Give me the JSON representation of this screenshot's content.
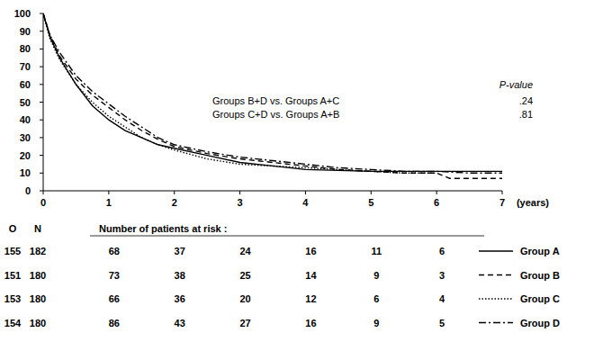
{
  "chart_data": {
    "type": "line",
    "x_label": "(years)",
    "xlim": [
      0,
      7
    ],
    "xticks": [
      0,
      1,
      2,
      3,
      4,
      5,
      6,
      7
    ],
    "ylim": [
      0,
      100
    ],
    "yticks": [
      0,
      10,
      20,
      30,
      40,
      50,
      60,
      70,
      80,
      90,
      100
    ],
    "grid": false,
    "p_value_title": "P-value",
    "p_values": [
      {
        "comparison": "Groups B+D vs. Groups A+C",
        "value": 0.24,
        "label": ".24"
      },
      {
        "comparison": "Groups C+D vs. Groups A+B",
        "value": 0.81,
        "label": ".81"
      }
    ],
    "risk_table": {
      "title": "Number of patients at risk :",
      "headers": [
        "O",
        "N"
      ],
      "times": [
        1,
        2,
        3,
        4,
        5,
        6
      ]
    },
    "series": [
      {
        "name": "Group A",
        "color": "#000000",
        "line_style": "solid",
        "observed": 155,
        "n": 182,
        "at_risk": [
          68,
          37,
          24,
          16,
          11,
          6
        ],
        "x": [
          0,
          0.1,
          0.25,
          0.5,
          0.75,
          1,
          1.25,
          1.5,
          1.75,
          2,
          2.5,
          3,
          3.5,
          4,
          4.5,
          5,
          6,
          7
        ],
        "values": [
          100,
          87,
          75,
          60,
          48,
          40,
          34,
          30,
          26,
          24,
          20,
          16,
          14,
          12,
          11.5,
          11,
          11,
          11
        ]
      },
      {
        "name": "Group B",
        "color": "#000000",
        "line_style": "dashed",
        "observed": 151,
        "n": 180,
        "at_risk": [
          73,
          38,
          25,
          14,
          9,
          3
        ],
        "x": [
          0,
          0.1,
          0.25,
          0.5,
          0.75,
          1,
          1.25,
          1.5,
          1.75,
          2,
          2.5,
          3,
          3.5,
          4,
          4.5,
          5,
          5.5,
          6,
          6.2,
          7
        ],
        "values": [
          100,
          88,
          76,
          63,
          54,
          47,
          40,
          34,
          29,
          25,
          21,
          18,
          16,
          14,
          12,
          11,
          10,
          10,
          7,
          7
        ]
      },
      {
        "name": "Group C",
        "color": "#000000",
        "line_style": "dotted",
        "observed": 153,
        "n": 180,
        "at_risk": [
          66,
          36,
          20,
          12,
          6,
          4
        ],
        "x": [
          0,
          0.1,
          0.25,
          0.5,
          0.75,
          1,
          1.25,
          1.5,
          1.75,
          2,
          2.5,
          3,
          3.5,
          4,
          4.5,
          5,
          5.5,
          6
        ],
        "values": [
          100,
          86,
          74,
          60,
          50,
          42,
          36,
          30,
          26,
          23,
          18,
          15,
          14,
          13,
          12,
          11,
          10,
          10
        ]
      },
      {
        "name": "Group D",
        "color": "#000000",
        "line_style": "dashdot",
        "observed": 154,
        "n": 180,
        "at_risk": [
          86,
          43,
          27,
          16,
          9,
          5
        ],
        "x": [
          0,
          0.1,
          0.25,
          0.5,
          0.75,
          1,
          1.25,
          1.5,
          1.75,
          2,
          2.5,
          3,
          3.5,
          4,
          4.5,
          5,
          5.5,
          6,
          6.5,
          7
        ],
        "values": [
          100,
          88,
          78,
          65,
          56,
          49,
          42,
          36,
          30,
          26,
          22,
          19,
          17,
          15,
          13,
          12,
          11,
          11,
          10,
          10
        ]
      }
    ]
  }
}
